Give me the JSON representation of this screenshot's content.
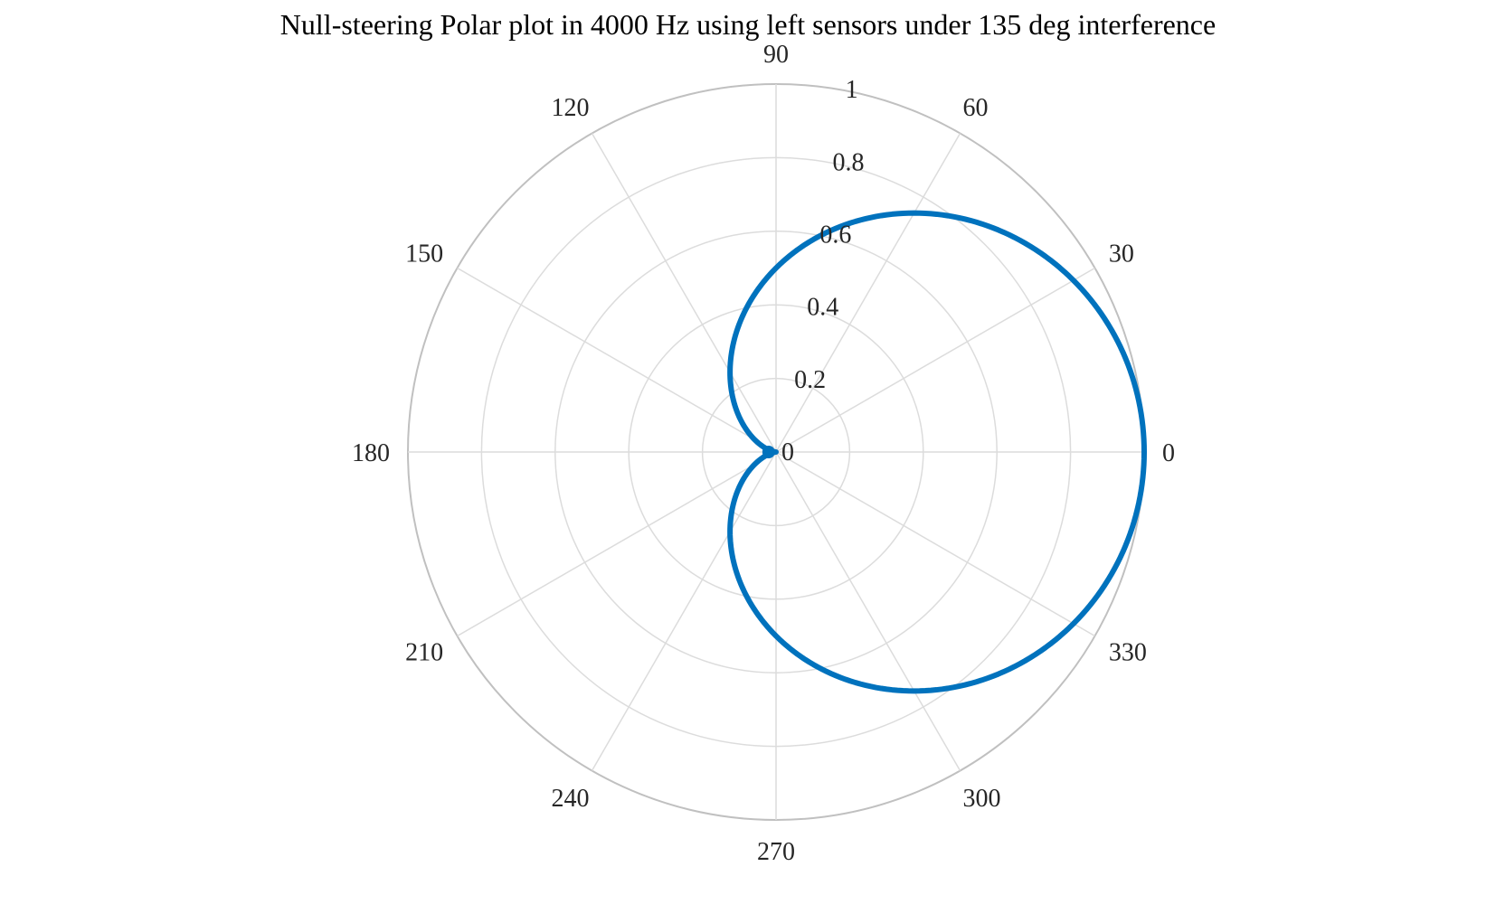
{
  "chart_data": {
    "type": "line",
    "projection": "polar",
    "title": "Null-steering Polar plot in 4000 Hz using left sensors under 135 deg interference",
    "theta_unit": "deg",
    "theta_zero_location": "right",
    "theta_direction": "counterclockwise",
    "theta_ticks": [
      "0",
      "30",
      "60",
      "90",
      "120",
      "150",
      "180",
      "210",
      "240",
      "270",
      "300",
      "330"
    ],
    "r_ticks": [
      "0",
      "0.2",
      "0.4",
      "0.6",
      "0.8",
      "1"
    ],
    "rlim": [
      0,
      1
    ],
    "grid": true,
    "series": [
      {
        "color": "#0072bd",
        "theta": [
          0,
          15,
          30,
          45,
          60,
          75,
          90,
          105,
          120,
          135,
          150,
          165,
          180,
          195,
          210,
          225,
          240,
          255,
          270,
          285,
          300,
          315,
          330,
          345,
          360
        ],
        "r": [
          1.0,
          0.983,
          0.933,
          0.854,
          0.75,
          0.629,
          0.5,
          0.371,
          0.25,
          0.146,
          0.067,
          0.017,
          0.0,
          0.017,
          0.067,
          0.146,
          0.25,
          0.371,
          0.5,
          0.629,
          0.75,
          0.854,
          0.933,
          0.983,
          1.0
        ]
      }
    ],
    "markers": [
      {
        "theta": 180,
        "r": 0.02,
        "color": "#0072bd"
      }
    ]
  }
}
